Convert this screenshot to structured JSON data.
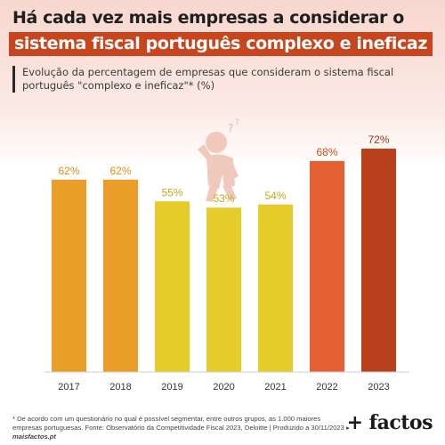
{
  "header": {
    "title_line1": "Há cada vez mais empresas a considerar o",
    "title_line2": "sistema fiscal português complexo e ineficaz",
    "subtitle": "Evolução da percentagem de empresas que consideram o sistema fiscal português \"complexo e ineficaz\"* (%)"
  },
  "chart_data": {
    "type": "bar",
    "categories": [
      "2017",
      "2018",
      "2019",
      "2020",
      "2021",
      "2022",
      "2023"
    ],
    "values": [
      62,
      62,
      55,
      53,
      54,
      68,
      72
    ],
    "value_labels": [
      "62%",
      "62%",
      "55%",
      "53%",
      "54%",
      "68%",
      "72%"
    ],
    "colors": [
      "#eb9d2a",
      "#eb9d2a",
      "#e6cc2a",
      "#e6cc2a",
      "#e6cc2a",
      "#e56132",
      "#b8401b"
    ],
    "label_colors": [
      "#d98e1c",
      "#d98e1c",
      "#c9a91c",
      "#c9a91c",
      "#c9a91c",
      "#d24e22",
      "#a83512"
    ],
    "ylim": [
      0,
      72
    ],
    "grid": false,
    "title": "Há cada vez mais empresas a considerar o sistema fiscal português complexo e ineficaz"
  },
  "illustration": {
    "icon": "confused-person-icon",
    "color": "#f0c9bd"
  },
  "footer": {
    "footnote": "* De acordo com um questionário no qual é possível segmentar, entre outros grupos, as 1.000 maiores empresas portuguesas. Fonte: Observatório da Competitividade Fiscal 2023, Deloitte | Produzido a 30/11/2023 ▸",
    "site": "maisfactos.pt",
    "brand": "+ factos"
  }
}
